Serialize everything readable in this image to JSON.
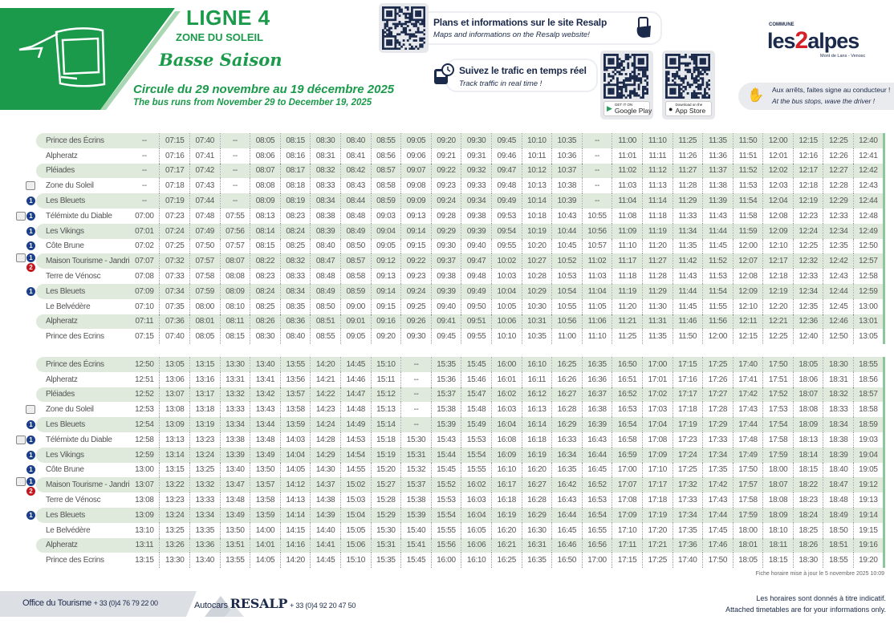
{
  "header": {
    "line": "LIGNE 4",
    "zone": "ZONE DU SOLEIL",
    "season": "Basse Saison",
    "dates_fr": "Circule du 29 novembre au 19 décembre 2025",
    "dates_en": "The bus runs from November 29 to December 19, 2025",
    "accent": "#1a9a4a"
  },
  "info": {
    "web_title": "Plans et informations sur le site Resalp",
    "web_sub": "Maps and informations on the Resalp website!",
    "traffic_title": "Suivez le trafic en temps réel",
    "traffic_sub": "Track traffic in real time !",
    "google_small": "GET IT ON",
    "google": "Google Play",
    "apple_small": "Download on the",
    "apple": "App Store"
  },
  "logo": {
    "commune": "COMMUNE",
    "name": "les2alpes",
    "sub": "Mont de Lans - Venosc"
  },
  "wave": {
    "fr": "Aux arrêts, faites signe au conducteur !",
    "en": "At the bus stops, wave the driver !"
  },
  "stop_icons": [
    "",
    "",
    "",
    "gondola",
    "1",
    "lift+1",
    "1",
    "1",
    "tourism+1+2",
    "",
    "1",
    "",
    "",
    ""
  ],
  "stops": [
    "Prince des Écrins",
    "Alpheratz",
    "Pléiades",
    "Zone du Soleil",
    "Les Bleuets",
    "Télémixte du Diable",
    "Les Vikings",
    "Côte Brune",
    "Maison Tourisme - Jandri",
    "Terre de Vénosc",
    "Les Bleuets",
    "Le Belvédère",
    "Alpheratz",
    "Prince des Ecrins"
  ],
  "tables": [
    [
      [
        "--",
        "07:15",
        "07:40",
        "--",
        "08:05",
        "08:15",
        "08:30",
        "08:40",
        "08:55",
        "09:05",
        "09:20",
        "09:30",
        "09:45",
        "10:10",
        "10:35",
        "--",
        "11:00",
        "11:10",
        "11:25",
        "11:35",
        "11:50",
        "12:00",
        "12:15",
        "12:25",
        "12:40"
      ],
      [
        "--",
        "07:16",
        "07:41",
        "--",
        "08:06",
        "08:16",
        "08:31",
        "08:41",
        "08:56",
        "09:06",
        "09:21",
        "09:31",
        "09:46",
        "10:11",
        "10:36",
        "--",
        "11:01",
        "11:11",
        "11:26",
        "11:36",
        "11:51",
        "12:01",
        "12:16",
        "12:26",
        "12:41"
      ],
      [
        "--",
        "07:17",
        "07:42",
        "--",
        "08:07",
        "08:17",
        "08:32",
        "08:42",
        "08:57",
        "09:07",
        "09:22",
        "09:32",
        "09:47",
        "10:12",
        "10:37",
        "--",
        "11:02",
        "11:12",
        "11:27",
        "11:37",
        "11:52",
        "12:02",
        "12:17",
        "12:27",
        "12:42"
      ],
      [
        "--",
        "07:18",
        "07:43",
        "--",
        "08:08",
        "08:18",
        "08:33",
        "08:43",
        "08:58",
        "09:08",
        "09:23",
        "09:33",
        "09:48",
        "10:13",
        "10:38",
        "--",
        "11:03",
        "11:13",
        "11:28",
        "11:38",
        "11:53",
        "12:03",
        "12:18",
        "12:28",
        "12:43"
      ],
      [
        "--",
        "07:19",
        "07:44",
        "--",
        "08:09",
        "08:19",
        "08:34",
        "08:44",
        "08:59",
        "09:09",
        "09:24",
        "09:34",
        "09:49",
        "10:14",
        "10:39",
        "--",
        "11:04",
        "11:14",
        "11:29",
        "11:39",
        "11:54",
        "12:04",
        "12:19",
        "12:29",
        "12:44"
      ],
      [
        "07:00",
        "07:23",
        "07:48",
        "07:55",
        "08:13",
        "08:23",
        "08:38",
        "08:48",
        "09:03",
        "09:13",
        "09:28",
        "09:38",
        "09:53",
        "10:18",
        "10:43",
        "10:55",
        "11:08",
        "11:18",
        "11:33",
        "11:43",
        "11:58",
        "12:08",
        "12:23",
        "12:33",
        "12:48"
      ],
      [
        "07:01",
        "07:24",
        "07:49",
        "07:56",
        "08:14",
        "08:24",
        "08:39",
        "08:49",
        "09:04",
        "09:14",
        "09:29",
        "09:39",
        "09:54",
        "10:19",
        "10:44",
        "10:56",
        "11:09",
        "11:19",
        "11:34",
        "11:44",
        "11:59",
        "12:09",
        "12:24",
        "12:34",
        "12:49"
      ],
      [
        "07:02",
        "07:25",
        "07:50",
        "07:57",
        "08:15",
        "08:25",
        "08:40",
        "08:50",
        "09:05",
        "09:15",
        "09:30",
        "09:40",
        "09:55",
        "10:20",
        "10:45",
        "10:57",
        "11:10",
        "11:20",
        "11:35",
        "11:45",
        "12:00",
        "12:10",
        "12:25",
        "12:35",
        "12:50"
      ],
      [
        "07:07",
        "07:32",
        "07:57",
        "08:07",
        "08:22",
        "08:32",
        "08:47",
        "08:57",
        "09:12",
        "09:22",
        "09:37",
        "09:47",
        "10:02",
        "10:27",
        "10:52",
        "11:02",
        "11:17",
        "11:27",
        "11:42",
        "11:52",
        "12:07",
        "12:17",
        "12:32",
        "12:42",
        "12:57"
      ],
      [
        "07:08",
        "07:33",
        "07:58",
        "08:08",
        "08:23",
        "08:33",
        "08:48",
        "08:58",
        "09:13",
        "09:23",
        "09:38",
        "09:48",
        "10:03",
        "10:28",
        "10:53",
        "11:03",
        "11:18",
        "11:28",
        "11:43",
        "11:53",
        "12:08",
        "12:18",
        "12:33",
        "12:43",
        "12:58"
      ],
      [
        "07:09",
        "07:34",
        "07:59",
        "08:09",
        "08:24",
        "08:34",
        "08:49",
        "08:59",
        "09:14",
        "09:24",
        "09:39",
        "09:49",
        "10:04",
        "10:29",
        "10:54",
        "11:04",
        "11:19",
        "11:29",
        "11:44",
        "11:54",
        "12:09",
        "12:19",
        "12:34",
        "12:44",
        "12:59"
      ],
      [
        "07:10",
        "07:35",
        "08:00",
        "08:10",
        "08:25",
        "08:35",
        "08:50",
        "09:00",
        "09:15",
        "09:25",
        "09:40",
        "09:50",
        "10:05",
        "10:30",
        "10:55",
        "11:05",
        "11:20",
        "11:30",
        "11:45",
        "11:55",
        "12:10",
        "12:20",
        "12:35",
        "12:45",
        "13:00"
      ],
      [
        "07:11",
        "07:36",
        "08:01",
        "08:11",
        "08:26",
        "08:36",
        "08:51",
        "09:01",
        "09:16",
        "09:26",
        "09:41",
        "09:51",
        "10:06",
        "10:31",
        "10:56",
        "11:06",
        "11:21",
        "11:31",
        "11:46",
        "11:56",
        "12:11",
        "12:21",
        "12:36",
        "12:46",
        "13:01"
      ],
      [
        "07:15",
        "07:40",
        "08:05",
        "08:15",
        "08:30",
        "08:40",
        "08:55",
        "09:05",
        "09:20",
        "09:30",
        "09:45",
        "09:55",
        "10:10",
        "10:35",
        "11:00",
        "11:10",
        "11:25",
        "11:35",
        "11:50",
        "12:00",
        "12:15",
        "12:25",
        "12:40",
        "12:50",
        "13:05"
      ]
    ],
    [
      [
        "12:50",
        "13:05",
        "13:15",
        "13:30",
        "13:40",
        "13:55",
        "14:20",
        "14:45",
        "15:10",
        "--",
        "15:35",
        "15:45",
        "16:00",
        "16:10",
        "16:25",
        "16:35",
        "16:50",
        "17:00",
        "17:15",
        "17:25",
        "17:40",
        "17:50",
        "18:05",
        "18:30",
        "18:55"
      ],
      [
        "12:51",
        "13:06",
        "13:16",
        "13:31",
        "13:41",
        "13:56",
        "14:21",
        "14:46",
        "15:11",
        "--",
        "15:36",
        "15:46",
        "16:01",
        "16:11",
        "16:26",
        "16:36",
        "16:51",
        "17:01",
        "17:16",
        "17:26",
        "17:41",
        "17:51",
        "18:06",
        "18:31",
        "18:56"
      ],
      [
        "12:52",
        "13:07",
        "13:17",
        "13:32",
        "13:42",
        "13:57",
        "14:22",
        "14:47",
        "15:12",
        "--",
        "15:37",
        "15:47",
        "16:02",
        "16:12",
        "16:27",
        "16:37",
        "16:52",
        "17:02",
        "17:17",
        "17:27",
        "17:42",
        "17:52",
        "18:07",
        "18:32",
        "18:57"
      ],
      [
        "12:53",
        "13:08",
        "13:18",
        "13:33",
        "13:43",
        "13:58",
        "14:23",
        "14:48",
        "15:13",
        "--",
        "15:38",
        "15:48",
        "16:03",
        "16:13",
        "16:28",
        "16:38",
        "16:53",
        "17:03",
        "17:18",
        "17:28",
        "17:43",
        "17:53",
        "18:08",
        "18:33",
        "18:58"
      ],
      [
        "12:54",
        "13:09",
        "13:19",
        "13:34",
        "13:44",
        "13:59",
        "14:24",
        "14:49",
        "15:14",
        "--",
        "15:39",
        "15:49",
        "16:04",
        "16:14",
        "16:29",
        "16:39",
        "16:54",
        "17:04",
        "17:19",
        "17:29",
        "17:44",
        "17:54",
        "18:09",
        "18:34",
        "18:59"
      ],
      [
        "12:58",
        "13:13",
        "13:23",
        "13:38",
        "13:48",
        "14:03",
        "14:28",
        "14:53",
        "15:18",
        "15:30",
        "15:43",
        "15:53",
        "16:08",
        "16:18",
        "16:33",
        "16:43",
        "16:58",
        "17:08",
        "17:23",
        "17:33",
        "17:48",
        "17:58",
        "18:13",
        "18:38",
        "19:03"
      ],
      [
        "12:59",
        "13:14",
        "13:24",
        "13:39",
        "13:49",
        "14:04",
        "14:29",
        "14:54",
        "15:19",
        "15:31",
        "15:44",
        "15:54",
        "16:09",
        "16:19",
        "16:34",
        "16:44",
        "16:59",
        "17:09",
        "17:24",
        "17:34",
        "17:49",
        "17:59",
        "18:14",
        "18:39",
        "19:04"
      ],
      [
        "13:00",
        "13:15",
        "13:25",
        "13:40",
        "13:50",
        "14:05",
        "14:30",
        "14:55",
        "15:20",
        "15:32",
        "15:45",
        "15:55",
        "16:10",
        "16:20",
        "16:35",
        "16:45",
        "17:00",
        "17:10",
        "17:25",
        "17:35",
        "17:50",
        "18:00",
        "18:15",
        "18:40",
        "19:05"
      ],
      [
        "13:07",
        "13:22",
        "13:32",
        "13:47",
        "13:57",
        "14:12",
        "14:37",
        "15:02",
        "15:27",
        "15:37",
        "15:52",
        "16:02",
        "16:17",
        "16:27",
        "16:42",
        "16:52",
        "17:07",
        "17:17",
        "17:32",
        "17:42",
        "17:57",
        "18:07",
        "18:22",
        "18:47",
        "19:12"
      ],
      [
        "13:08",
        "13:23",
        "13:33",
        "13:48",
        "13:58",
        "14:13",
        "14:38",
        "15:03",
        "15:28",
        "15:38",
        "15:53",
        "16:03",
        "16:18",
        "16:28",
        "16:43",
        "16:53",
        "17:08",
        "17:18",
        "17:33",
        "17:43",
        "17:58",
        "18:08",
        "18:23",
        "18:48",
        "19:13"
      ],
      [
        "13:09",
        "13:24",
        "13:34",
        "13:49",
        "13:59",
        "14:14",
        "14:39",
        "15:04",
        "15:29",
        "15:39",
        "15:54",
        "16:04",
        "16:19",
        "16:29",
        "16:44",
        "16:54",
        "17:09",
        "17:19",
        "17:34",
        "17:44",
        "17:59",
        "18:09",
        "18:24",
        "18:49",
        "19:14"
      ],
      [
        "13:10",
        "13:25",
        "13:35",
        "13:50",
        "14:00",
        "14:15",
        "14:40",
        "15:05",
        "15:30",
        "15:40",
        "15:55",
        "16:05",
        "16:20",
        "16:30",
        "16:45",
        "16:55",
        "17:10",
        "17:20",
        "17:35",
        "17:45",
        "18:00",
        "18:10",
        "18:25",
        "18:50",
        "19:15"
      ],
      [
        "13:11",
        "13:26",
        "13:36",
        "13:51",
        "14:01",
        "14:16",
        "14:41",
        "15:06",
        "15:31",
        "15:41",
        "15:56",
        "16:06",
        "16:21",
        "16:31",
        "16:46",
        "16:56",
        "17:11",
        "17:21",
        "17:36",
        "17:46",
        "18:01",
        "18:11",
        "18:26",
        "18:51",
        "19:16"
      ],
      [
        "13:15",
        "13:30",
        "13:40",
        "13:55",
        "14:05",
        "14:20",
        "14:45",
        "15:10",
        "15:35",
        "15:45",
        "16:00",
        "16:10",
        "16:25",
        "16:35",
        "16:50",
        "17:00",
        "17:15",
        "17:25",
        "17:40",
        "17:50",
        "18:05",
        "18:15",
        "18:30",
        "18:55",
        "19:20"
      ]
    ]
  ],
  "updated": "Fiche horaire mise à jour le 5 novembre 2025 10:09",
  "footer": {
    "office": "Office du Tourisme",
    "office_phone": "+ 33 (0)4 76 79 22 00",
    "autocars": "Autocars",
    "resalp": "RESALP",
    "resalp_phone": "+ 33 (0)4 92 20 47 50",
    "disclaimer_fr": "Les horaires sont donnés à titre indicatif.",
    "disclaimer_en": "Attached timetables are for your informations only."
  }
}
